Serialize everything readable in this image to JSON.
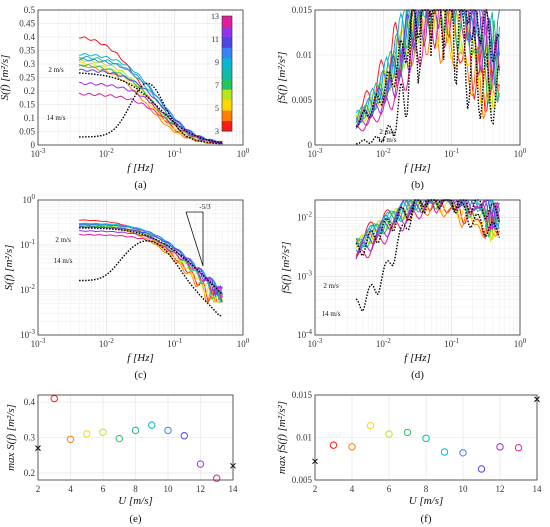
{
  "panels": [
    {
      "id": "a",
      "label": "(a)",
      "xlabel": "f [Hz]",
      "ylabel": "S(f) [m²/s]",
      "x_ticks": [
        "10-3",
        "10-2",
        "10-1",
        "100"
      ],
      "y_ticks": [
        "0",
        "0.05",
        "0.1",
        "0.15",
        "0.2",
        "0.25",
        "0.3",
        "0.35",
        "0.4",
        "0.45",
        "0.5"
      ],
      "annotations": [
        "2 m/s",
        "14 m/s"
      ],
      "ylim": [
        0,
        0.5
      ],
      "xlim": [
        0.001,
        1
      ],
      "xscale": "log",
      "yscale": "linear"
    },
    {
      "id": "b",
      "label": "(b)",
      "xlabel": "f [Hz]",
      "ylabel": "fS(f) [m²/s²]",
      "x_ticks": [
        "10-3",
        "10-2",
        "10-1",
        "100"
      ],
      "y_ticks": [
        "0",
        "0.005",
        "0.01",
        "0.015"
      ],
      "annotations": [
        "2 m/s",
        "14 m/s"
      ],
      "ylim": [
        0,
        0.015
      ],
      "xlim": [
        0.001,
        1
      ],
      "xscale": "log",
      "yscale": "linear"
    },
    {
      "id": "c",
      "label": "(c)",
      "xlabel": "f [Hz]",
      "ylabel": "S(f) [m²/s]",
      "x_ticks": [
        "10-3",
        "10-2",
        "10-1",
        "100"
      ],
      "y_ticks": [
        "10-3",
        "10-2",
        "10-1",
        "100"
      ],
      "annotations": [
        "2 m/s",
        "14 m/s",
        "-5/3"
      ],
      "ylim": [
        0.001,
        1
      ],
      "xlim": [
        0.001,
        1
      ],
      "xscale": "log",
      "yscale": "log"
    },
    {
      "id": "d",
      "label": "(d)",
      "xlabel": "f [Hz]",
      "ylabel": "fS(f) [m²/s²]",
      "x_ticks": [
        "10-3",
        "10-2",
        "10-1",
        "100"
      ],
      "y_ticks": [
        "10-4",
        "10-3",
        "10-2"
      ],
      "annotations": [
        "2 m/s",
        "14 m/s"
      ],
      "ylim": [
        0.0001,
        0.02
      ],
      "xlim": [
        0.001,
        1
      ],
      "xscale": "log",
      "yscale": "log"
    },
    {
      "id": "e",
      "label": "(e)",
      "xlabel": "U [m/s]",
      "ylabel": "max S(f) [m²/s]",
      "x_ticks": [
        "2",
        "4",
        "6",
        "8",
        "10",
        "12",
        "14"
      ],
      "y_ticks": [
        "0.2",
        "0.3",
        "0.4"
      ],
      "ylim": [
        0.18,
        0.42
      ],
      "xlim": [
        2,
        14
      ]
    },
    {
      "id": "f",
      "label": "(f)",
      "xlabel": "U [m/s]",
      "ylabel": "max fS(f) [m²/s²]",
      "x_ticks": [
        "2",
        "4",
        "6",
        "8",
        "10",
        "12",
        "14"
      ],
      "y_ticks": [
        "0.005",
        "0.01",
        "0.015"
      ],
      "ylim": [
        0.005,
        0.015
      ],
      "xlim": [
        2,
        14
      ]
    }
  ],
  "colorbar": {
    "ticks": [
      "3",
      "5",
      "7",
      "9",
      "11",
      "13"
    ],
    "range": [
      3,
      13
    ],
    "colors": [
      "#ff1a1a",
      "#ff7f00",
      "#ffd700",
      "#b5e61d",
      "#22c55e",
      "#14b8a6",
      "#06b6d4",
      "#3b82f6",
      "#4f46e5",
      "#9333ea",
      "#e11d9b"
    ]
  },
  "chart_data": [
    {
      "type": "scatter",
      "panel": "e",
      "title": "",
      "x": [
        3,
        4,
        5,
        6,
        7,
        8,
        9,
        10,
        11,
        12,
        13
      ],
      "y": [
        0.41,
        0.295,
        0.31,
        0.315,
        0.297,
        0.32,
        0.335,
        0.32,
        0.305,
        0.225,
        0.185
      ],
      "colors": [
        "#ff1a1a",
        "#ff7f00",
        "#ffd700",
        "#b5e61d",
        "#22c55e",
        "#14b8a6",
        "#06b6d4",
        "#3b82f6",
        "#4f46e5",
        "#9333ea",
        "#e11d9b"
      ],
      "extra_points": [
        {
          "x": 2,
          "y": 0.27,
          "marker": "x"
        },
        {
          "x": 14,
          "y": 0.22,
          "marker": "x"
        }
      ],
      "xlim": [
        2,
        14
      ],
      "ylim": [
        0.18,
        0.42
      ]
    },
    {
      "type": "scatter",
      "panel": "f",
      "title": "",
      "x": [
        3,
        4,
        5,
        6,
        7,
        8,
        9,
        10,
        11,
        12,
        13
      ],
      "y": [
        0.0091,
        0.0089,
        0.0114,
        0.0104,
        0.0106,
        0.0099,
        0.0083,
        0.0082,
        0.0063,
        0.0089,
        0.0088
      ],
      "colors": [
        "#ff1a1a",
        "#ff7f00",
        "#ffd700",
        "#b5e61d",
        "#22c55e",
        "#14b8a6",
        "#06b6d4",
        "#3b82f6",
        "#4f46e5",
        "#9333ea",
        "#e11d9b"
      ],
      "extra_points": [
        {
          "x": 2,
          "y": 0.0072,
          "marker": "x"
        },
        {
          "x": 14,
          "y": 0.0145,
          "marker": "x"
        }
      ],
      "xlim": [
        2,
        14
      ],
      "ylim": [
        0.005,
        0.015
      ]
    }
  ]
}
